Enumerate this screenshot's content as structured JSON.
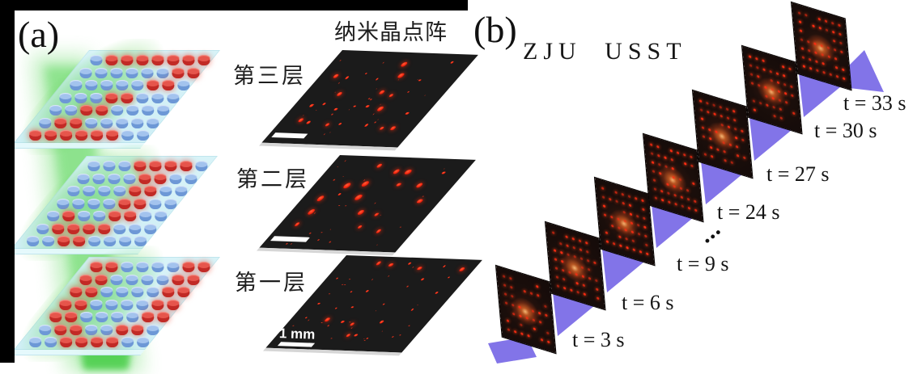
{
  "panel_a": {
    "label": "(a)",
    "title": "纳米晶点阵",
    "layers": [
      "第三层",
      "第二层",
      "第一层"
    ],
    "scalebar_label": "1 mm",
    "colors": {
      "red_nanocrystal": "#c12a26",
      "blue_nanocrystal": "#6d98d6",
      "plate": "#d5f2f7",
      "beam_green": "#5ed45e",
      "image_background": "#1b1b1b",
      "image_dot_red": "#f3210c"
    },
    "plates": [
      {
        "name": "layer-3-pattern-Z",
        "pattern": [
          "01111111",
          "00000011",
          "00000110",
          "00011000",
          "00110000",
          "01100000",
          "11111100"
        ]
      },
      {
        "name": "layer-2-pattern-J",
        "pattern": [
          "00011110",
          "00001100",
          "00001100",
          "00001100",
          "01001100",
          "01111000",
          "00110000"
        ]
      },
      {
        "name": "layer-1-pattern-U",
        "pattern": [
          "11000011",
          "11000011",
          "11000011",
          "11000011",
          "11000011",
          "01100110",
          "00111100"
        ]
      }
    ]
  },
  "panel_b": {
    "label": "(b)",
    "watermark": "ZJU USST",
    "ellipsis": "...",
    "colors": {
      "ribbon_purple": "#8274e8",
      "frame_background": "#170d0b",
      "frame_dot_red": "#ff2c12"
    },
    "frames": [
      {
        "label": "t = 3 s"
      },
      {
        "label": "t = 6 s"
      },
      {
        "label": "t = 9 s"
      },
      {
        "label": "t = 24 s"
      },
      {
        "label": "t = 27 s"
      },
      {
        "label": "t = 30 s"
      },
      {
        "label": "t = 33 s"
      }
    ]
  }
}
